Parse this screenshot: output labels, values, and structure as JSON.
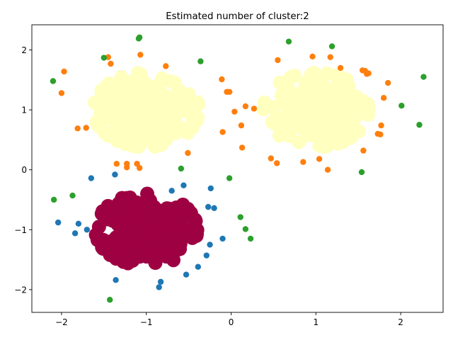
{
  "chart_data": {
    "type": "scatter",
    "title": "Estimated number of cluster:2",
    "xlabel": "",
    "ylabel": "",
    "xlim": [
      -2.35,
      2.5
    ],
    "ylim": [
      -2.38,
      2.42
    ],
    "xticks": [
      -2,
      -1,
      0,
      1,
      2
    ],
    "yticks": [
      -2,
      -1,
      0,
      1,
      2
    ],
    "xtick_labels": [
      "−2",
      "−1",
      "0",
      "1",
      "2"
    ],
    "ytick_labels": [
      "−2",
      "−1",
      "0",
      "1",
      "2"
    ],
    "grid": false,
    "legend": "none",
    "colors": {
      "core_cluster_1": "#ffffc0",
      "core_cluster_0": "#9e0142",
      "noise_blue": "#1f77b4",
      "noise_orange": "#ff7f0e",
      "noise_green": "#2ca02c"
    },
    "clusters": [
      {
        "label": 1,
        "color": "#ffffc0",
        "marker_size": "large",
        "blobs": [
          {
            "center": [
              -1.0,
              1.0
            ],
            "radius": 0.62
          },
          {
            "center": [
              1.0,
              1.0
            ],
            "radius": 0.62
          }
        ]
      },
      {
        "label": 0,
        "color": "#9e0142",
        "marker_size": "large",
        "blobs": [
          {
            "center": [
              -1.0,
              -1.0
            ],
            "radius": 0.6
          }
        ]
      }
    ],
    "noise_points": {
      "blue": [
        [
          -2.04,
          -0.88
        ],
        [
          -1.84,
          -1.06
        ],
        [
          -1.8,
          -0.9
        ],
        [
          -1.65,
          -0.14
        ],
        [
          -1.37,
          -0.08
        ],
        [
          -1.36,
          -1.84
        ],
        [
          -0.85,
          -1.96
        ],
        [
          -0.83,
          -1.87
        ],
        [
          -0.56,
          -0.26
        ],
        [
          -0.53,
          -1.75
        ],
        [
          -0.39,
          -1.62
        ],
        [
          -0.29,
          -1.43
        ],
        [
          -0.27,
          -0.62
        ],
        [
          -0.25,
          -1.25
        ],
        [
          -0.24,
          -0.31
        ],
        [
          -0.2,
          -0.64
        ],
        [
          -0.1,
          -1.15
        ],
        [
          -1.7,
          -1.0
        ],
        [
          -0.7,
          -0.35
        ]
      ],
      "orange": [
        [
          -2.0,
          1.28
        ],
        [
          -1.97,
          1.64
        ],
        [
          -1.81,
          0.69
        ],
        [
          -1.71,
          0.7
        ],
        [
          -1.45,
          1.88
        ],
        [
          -1.42,
          1.77
        ],
        [
          -1.35,
          0.1
        ],
        [
          -1.23,
          0.04
        ],
        [
          -1.23,
          0.1
        ],
        [
          -1.11,
          0.1
        ],
        [
          -1.08,
          0.03
        ],
        [
          -1.07,
          1.92
        ],
        [
          -0.77,
          1.73
        ],
        [
          -0.51,
          0.28
        ],
        [
          -0.11,
          1.51
        ],
        [
          -0.1,
          0.63
        ],
        [
          -0.05,
          1.3
        ],
        [
          -0.02,
          1.3
        ],
        [
          0.04,
          0.97
        ],
        [
          0.12,
          0.74
        ],
        [
          0.13,
          0.37
        ],
        [
          0.17,
          1.06
        ],
        [
          0.27,
          1.02
        ],
        [
          0.47,
          0.19
        ],
        [
          0.54,
          0.11
        ],
        [
          0.55,
          1.83
        ],
        [
          0.85,
          0.13
        ],
        [
          0.96,
          1.89
        ],
        [
          1.04,
          0.18
        ],
        [
          1.14,
          0.0
        ],
        [
          1.17,
          1.88
        ],
        [
          1.29,
          1.7
        ],
        [
          1.55,
          1.66
        ],
        [
          1.58,
          1.65
        ],
        [
          1.6,
          1.6
        ],
        [
          1.62,
          1.61
        ],
        [
          1.56,
          0.32
        ],
        [
          1.73,
          0.6
        ],
        [
          1.76,
          0.59
        ],
        [
          1.77,
          0.74
        ],
        [
          1.8,
          1.2
        ],
        [
          1.85,
          1.45
        ]
      ],
      "green": [
        [
          -2.1,
          1.48
        ],
        [
          -2.09,
          -0.5
        ],
        [
          -1.87,
          -0.43
        ],
        [
          -1.5,
          1.87
        ],
        [
          -1.43,
          -2.17
        ],
        [
          -1.09,
          2.19
        ],
        [
          -1.08,
          2.21
        ],
        [
          -0.59,
          0.02
        ],
        [
          -0.36,
          1.81
        ],
        [
          -0.02,
          -0.14
        ],
        [
          0.11,
          -0.79
        ],
        [
          0.17,
          -0.99
        ],
        [
          0.23,
          -1.15
        ],
        [
          0.68,
          2.14
        ],
        [
          1.19,
          2.06
        ],
        [
          1.54,
          -0.04
        ],
        [
          2.01,
          1.07
        ],
        [
          2.22,
          0.75
        ],
        [
          2.27,
          1.55
        ]
      ]
    }
  }
}
